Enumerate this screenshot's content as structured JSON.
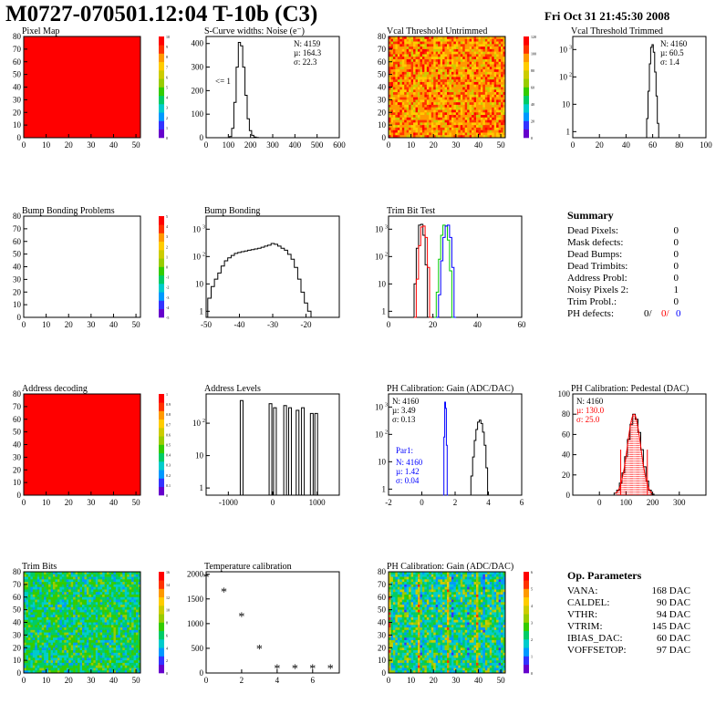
{
  "header": {
    "title": "M0727-070501.12:04 T-10b (C3)",
    "timestamp": "Fri Oct 31 21:45:30 2008"
  },
  "colors": {
    "palette": [
      "#6600cc",
      "#3333ff",
      "#0099ff",
      "#00cccc",
      "#00cc66",
      "#33cc00",
      "#99cc00",
      "#cccc00",
      "#ffcc00",
      "#ff9900",
      "#ff3300",
      "#ff0000"
    ],
    "red": "#ff0000",
    "green": "#00cc00",
    "blue": "#0000ff",
    "black": "#000000"
  },
  "summary": {
    "title": "Summary",
    "rows": [
      {
        "label": "Dead Pixels:",
        "value": "0"
      },
      {
        "label": "Mask defects:",
        "value": "0"
      },
      {
        "label": "Dead Bumps:",
        "value": "0"
      },
      {
        "label": "Dead Trimbits:",
        "value": "0"
      },
      {
        "label": "Address Probl:",
        "value": "0"
      },
      {
        "label": "Noisy Pixels 2:",
        "value": "1"
      },
      {
        "label": "Trim Probl.:",
        "value": "0"
      }
    ],
    "ph_defects": {
      "label": "PH defects:",
      "v1": "0/",
      "v2": "0/",
      "v3": "0"
    }
  },
  "op_params": {
    "title": "Op. Parameters",
    "rows": [
      {
        "label": "VANA:",
        "value": "168 DAC"
      },
      {
        "label": "CALDEL:",
        "value": "90 DAC"
      },
      {
        "label": "VTHR:",
        "value": "94 DAC"
      },
      {
        "label": "VTRIM:",
        "value": "145 DAC"
      },
      {
        "label": "IBIAS_DAC:",
        "value": "60 DAC"
      },
      {
        "label": "VOFFSETOP:",
        "value": "97 DAC"
      }
    ]
  },
  "chart_data": [
    {
      "id": "pixel-map",
      "type": "heatmap",
      "title": "Pixel Map",
      "xlim": [
        0,
        52
      ],
      "ylim": [
        0,
        80
      ],
      "xticks": [
        "0",
        "10",
        "20",
        "30",
        "40",
        "50"
      ],
      "yticks": [
        "0",
        "10",
        "20",
        "30",
        "40",
        "50",
        "60",
        "70",
        "80"
      ],
      "zlim": [
        0,
        10
      ],
      "zticks": [
        "0",
        "1",
        "2",
        "3",
        "4",
        "5",
        "6",
        "7",
        "8",
        "9",
        "10"
      ],
      "value": 10
    },
    {
      "id": "scurve",
      "type": "histogram",
      "title": "S-Curve widths: Noise (e⁻)",
      "xlim": [
        0,
        600
      ],
      "ylim": [
        0,
        430
      ],
      "xticks": [
        "0",
        "100",
        "200",
        "300",
        "400",
        "500",
        "600"
      ],
      "yticks": [
        "0",
        "100",
        "200",
        "300",
        "400"
      ],
      "stats": [
        "N: 4159",
        "µ: 164.3",
        "σ: 22.3"
      ],
      "annotation": "<= 1",
      "x": [
        100,
        110,
        120,
        130,
        140,
        150,
        160,
        170,
        180,
        190,
        200,
        210,
        220,
        230,
        240
      ],
      "values": [
        0,
        5,
        40,
        150,
        300,
        405,
        390,
        300,
        180,
        80,
        30,
        10,
        3,
        1,
        0
      ]
    },
    {
      "id": "vcal-untrimmed",
      "type": "heatmap",
      "title": "Vcal Threshold Untrimmed",
      "xlim": [
        0,
        52
      ],
      "ylim": [
        0,
        80
      ],
      "xticks": [
        "0",
        "10",
        "20",
        "30",
        "40",
        "50"
      ],
      "yticks": [
        "0",
        "10",
        "20",
        "30",
        "40",
        "50",
        "60",
        "70",
        "80"
      ],
      "zlim": [
        0,
        120
      ],
      "zticks": [
        "0",
        "20",
        "40",
        "60",
        "80",
        "100",
        "120"
      ],
      "mean_level": "orange"
    },
    {
      "id": "vcal-trimmed",
      "type": "histogram",
      "title": "Vcal Threshold Trimmed",
      "xlim": [
        0,
        100
      ],
      "log": true,
      "xticks": [
        "0",
        "20",
        "40",
        "60",
        "80",
        "100"
      ],
      "yticks": [
        "1",
        "10",
        "10²",
        "10³"
      ],
      "stats": [
        "N: 4160",
        "µ: 60.5",
        "σ: 1.4"
      ],
      "x": [
        55,
        56,
        57,
        58,
        59,
        60,
        61,
        62,
        63,
        64,
        65
      ],
      "values": [
        0,
        3,
        30,
        300,
        1200,
        1500,
        800,
        150,
        20,
        2,
        0
      ]
    },
    {
      "id": "bump-problems",
      "type": "heatmap",
      "title": "Bump Bonding Problems",
      "xlim": [
        0,
        52
      ],
      "ylim": [
        0,
        80
      ],
      "xticks": [
        "0",
        "10",
        "20",
        "30",
        "40",
        "50"
      ],
      "yticks": [
        "0",
        "10",
        "20",
        "30",
        "40",
        "50",
        "60",
        "70",
        "80"
      ],
      "zlim": [
        -5,
        5
      ],
      "zticks": [
        "-5",
        "-4",
        "-3",
        "-2",
        "-1",
        "0",
        "1",
        "2",
        "3",
        "4",
        "5"
      ],
      "value": null
    },
    {
      "id": "bump-bonding",
      "type": "histogram",
      "title": "Bump Bonding",
      "xlim": [
        -50,
        -10
      ],
      "log": true,
      "xticks": [
        "-50",
        "-40",
        "-30",
        "-20"
      ],
      "yticks": [
        "1",
        "10",
        "10²",
        "10³"
      ],
      "x": [
        -49,
        -48,
        -47,
        -46,
        -45,
        -44,
        -43,
        -42,
        -41,
        -40,
        -39,
        -38,
        -37,
        -36,
        -35,
        -34,
        -33,
        -32,
        -31,
        -30,
        -29,
        -28,
        -27,
        -26,
        -25,
        -24,
        -23,
        -22,
        -21,
        -20,
        -19,
        -18,
        -17,
        -16
      ],
      "values": [
        3,
        8,
        15,
        25,
        45,
        70,
        90,
        110,
        130,
        140,
        150,
        160,
        170,
        180,
        190,
        200,
        220,
        240,
        260,
        300,
        280,
        240,
        200,
        170,
        120,
        80,
        40,
        15,
        5,
        2,
        1,
        0,
        0,
        0
      ]
    },
    {
      "id": "trim-bit",
      "type": "histogram",
      "title": "Trim Bit Test",
      "xlim": [
        0,
        60
      ],
      "log": true,
      "xticks": [
        "0",
        "20",
        "40",
        "60"
      ],
      "yticks": [
        "1",
        "10",
        "10²",
        "10³"
      ],
      "series": [
        {
          "color": "#000000",
          "x": [
            11,
            12,
            13,
            14,
            15,
            16,
            17,
            18
          ],
          "values": [
            0,
            10,
            200,
            1400,
            1500,
            600,
            50,
            0
          ]
        },
        {
          "color": "#ff0000",
          "x": [
            12,
            13,
            14,
            15,
            16,
            17,
            18,
            19
          ],
          "values": [
            0,
            15,
            250,
            1200,
            1300,
            500,
            40,
            0
          ]
        },
        {
          "color": "#00cc00",
          "x": [
            21,
            22,
            23,
            24,
            25,
            26,
            27,
            28,
            29
          ],
          "values": [
            0,
            5,
            80,
            600,
            1400,
            1300,
            400,
            30,
            0
          ]
        },
        {
          "color": "#0000ff",
          "x": [
            22,
            23,
            24,
            25,
            26,
            27,
            28,
            29,
            30
          ],
          "values": [
            0,
            4,
            70,
            500,
            1300,
            1400,
            500,
            40,
            0
          ]
        }
      ]
    },
    {
      "id": "address-decoding",
      "type": "heatmap",
      "title": "Address decoding",
      "xlim": [
        0,
        52
      ],
      "ylim": [
        0,
        80
      ],
      "xticks": [
        "0",
        "10",
        "20",
        "30",
        "40",
        "50"
      ],
      "yticks": [
        "0",
        "10",
        "20",
        "30",
        "40",
        "50",
        "60",
        "70",
        "80"
      ],
      "zlim": [
        0,
        1
      ],
      "zticks": [
        "0",
        "0.1",
        "0.2",
        "0.3",
        "0.4",
        "0.5",
        "0.6",
        "0.7",
        "0.8",
        "0.9",
        "1"
      ],
      "value": 1
    },
    {
      "id": "address-levels",
      "type": "histogram",
      "title": "Address Levels",
      "xlim": [
        -1500,
        1500
      ],
      "log": true,
      "xticks": [
        "-1000",
        "0",
        "1000"
      ],
      "yticks": [
        "1",
        "10",
        "10²"
      ],
      "spikes": [
        [
          -700,
          500
        ],
        [
          -50,
          400
        ],
        [
          50,
          300
        ],
        [
          280,
          350
        ],
        [
          390,
          300
        ],
        [
          560,
          250
        ],
        [
          680,
          300
        ],
        [
          880,
          200
        ],
        [
          980,
          200
        ]
      ]
    },
    {
      "id": "ph-gain",
      "type": "histogram",
      "title": "PH Calibration: Gain (ADC/DAC)",
      "xlim": [
        -2,
        6
      ],
      "log": true,
      "xticks": [
        "-2",
        "0",
        "2",
        "4",
        "6"
      ],
      "yticks": [
        "1",
        "10",
        "10²",
        "10³"
      ],
      "stats": [
        "N: 4160",
        "µ: 3.49",
        "σ: 0.13"
      ],
      "par1": {
        "label": "Par1:",
        "stats": [
          "N: 4160",
          "µ: 1.42",
          "σ: 0.04"
        ]
      },
      "series": [
        {
          "color": "#000000",
          "x": [
            2.9,
            3.0,
            3.1,
            3.2,
            3.3,
            3.4,
            3.5,
            3.6,
            3.7,
            3.8,
            3.9,
            4.0
          ],
          "values": [
            0,
            3,
            15,
            60,
            150,
            280,
            330,
            250,
            120,
            40,
            6,
            0
          ]
        },
        {
          "color": "#0000ff",
          "x": [
            1.3,
            1.35,
            1.4,
            1.45,
            1.5,
            1.55
          ],
          "values": [
            0,
            80,
            1500,
            900,
            40,
            0
          ]
        }
      ]
    },
    {
      "id": "ph-pedestal",
      "type": "histogram",
      "title": "PH Calibration: Pedestal (DAC)",
      "xlim": [
        -100,
        400
      ],
      "ylim": [
        0,
        100
      ],
      "xticks": [
        "0",
        "100",
        "200",
        "300"
      ],
      "yticks": [
        "0",
        "20",
        "40",
        "60",
        "80",
        "100"
      ],
      "stats": [
        "N: 4160"
      ],
      "red_stats": [
        "µ: 130.0",
        "σ: 25.0"
      ],
      "x": [
        60,
        70,
        80,
        90,
        100,
        110,
        120,
        130,
        140,
        150,
        160,
        170,
        180,
        190,
        200
      ],
      "values": [
        2,
        5,
        12,
        22,
        38,
        55,
        70,
        80,
        75,
        62,
        45,
        28,
        14,
        5,
        1
      ]
    },
    {
      "id": "trim-bits",
      "type": "heatmap",
      "title": "Trim Bits",
      "xlim": [
        0,
        52
      ],
      "ylim": [
        0,
        80
      ],
      "xticks": [
        "0",
        "10",
        "20",
        "30",
        "40",
        "50"
      ],
      "yticks": [
        "0",
        "10",
        "20",
        "30",
        "40",
        "50",
        "60",
        "70",
        "80"
      ],
      "zlim": [
        0,
        16
      ],
      "zticks": [
        "0",
        "2",
        "4",
        "6",
        "8",
        "10",
        "12",
        "14",
        "16"
      ],
      "mean_level": "green"
    },
    {
      "id": "temperature",
      "type": "scatter",
      "title": "Temperature calibration",
      "xlim": [
        0,
        7.5
      ],
      "ylim": [
        0,
        2050
      ],
      "xticks": [
        "0",
        "2",
        "4",
        "6"
      ],
      "yticks": [
        "0",
        "500",
        "1000",
        "1500",
        "2000"
      ],
      "x": [
        0,
        1,
        2,
        3,
        4,
        5,
        6,
        7
      ],
      "values": [
        1950,
        1650,
        1150,
        500,
        100,
        100,
        100,
        100
      ]
    },
    {
      "id": "ph-gain-map",
      "type": "heatmap",
      "title": "PH Calibration: Gain (ADC/DAC)",
      "xlim": [
        0,
        52
      ],
      "ylim": [
        0,
        80
      ],
      "xticks": [
        "0",
        "10",
        "20",
        "30",
        "40",
        "50"
      ],
      "yticks": [
        "0",
        "10",
        "20",
        "30",
        "40",
        "50",
        "60",
        "70",
        "80"
      ],
      "zlim": [
        0,
        6
      ],
      "zticks": [
        "0",
        "1",
        "2",
        "3",
        "4",
        "5",
        "6"
      ],
      "mean_level": "green-cyan"
    }
  ]
}
